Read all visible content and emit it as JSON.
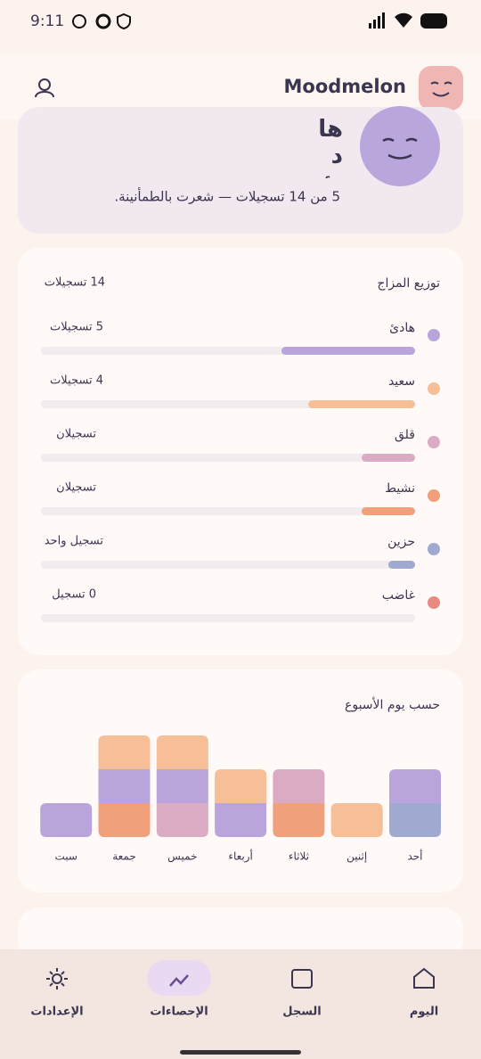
{
  "status_bar": {
    "time": "9:11"
  },
  "header": {
    "title": "Moodmelon"
  },
  "hero": {
    "mood": "هادئ",
    "summary": "5 من 14 تسجيلات — شعرت بالطمأنينة."
  },
  "distribution": {
    "title": "توزيع المزاج",
    "total": 14,
    "total_label": "14 تسجيلات",
    "items": [
      {
        "label": "هادئ",
        "count": 5,
        "count_label": "5 تسجيلات",
        "color": "#b9a5dc"
      },
      {
        "label": "سعيد",
        "count": 4,
        "count_label": "4 تسجيلات",
        "color": "#f6bf98"
      },
      {
        "label": "قلق",
        "count": 2,
        "count_label": "تسجيلان",
        "color": "#dbaac3"
      },
      {
        "label": "نشيط",
        "count": 2,
        "count_label": "تسجيلان",
        "color": "#f0a07a"
      },
      {
        "label": "حزين",
        "count": 1,
        "count_label": "تسجيل واحد",
        "color": "#a0a9cf"
      },
      {
        "label": "غاضب",
        "count": 0,
        "count_label": "0 تسجيل",
        "color": "#e88a80"
      }
    ]
  },
  "weekday": {
    "title": "حسب يوم الأسبوع",
    "days": [
      "أحد",
      "إثنين",
      "ثلاثاء",
      "أربعاء",
      "خميس",
      "جمعة",
      "سبت"
    ],
    "series": [
      {
        "color": "#a0a9cf",
        "values": [
          1,
          0,
          0,
          0,
          0,
          0,
          0
        ]
      },
      {
        "color": "#f0a07a",
        "values": [
          0,
          0,
          1,
          0,
          0,
          1,
          0
        ]
      },
      {
        "color": "#dbaac3",
        "values": [
          0,
          0,
          1,
          0,
          1,
          0,
          0
        ]
      },
      {
        "color": "#b9a5dc",
        "values": [
          1,
          0,
          0,
          1,
          1,
          1,
          1
        ]
      },
      {
        "color": "#f6bf98",
        "values": [
          0,
          1,
          0,
          1,
          1,
          1,
          0
        ]
      }
    ]
  },
  "nav": {
    "items": [
      "اليوم",
      "السجل",
      "الإحصاءات",
      "الإعدادات"
    ]
  }
}
